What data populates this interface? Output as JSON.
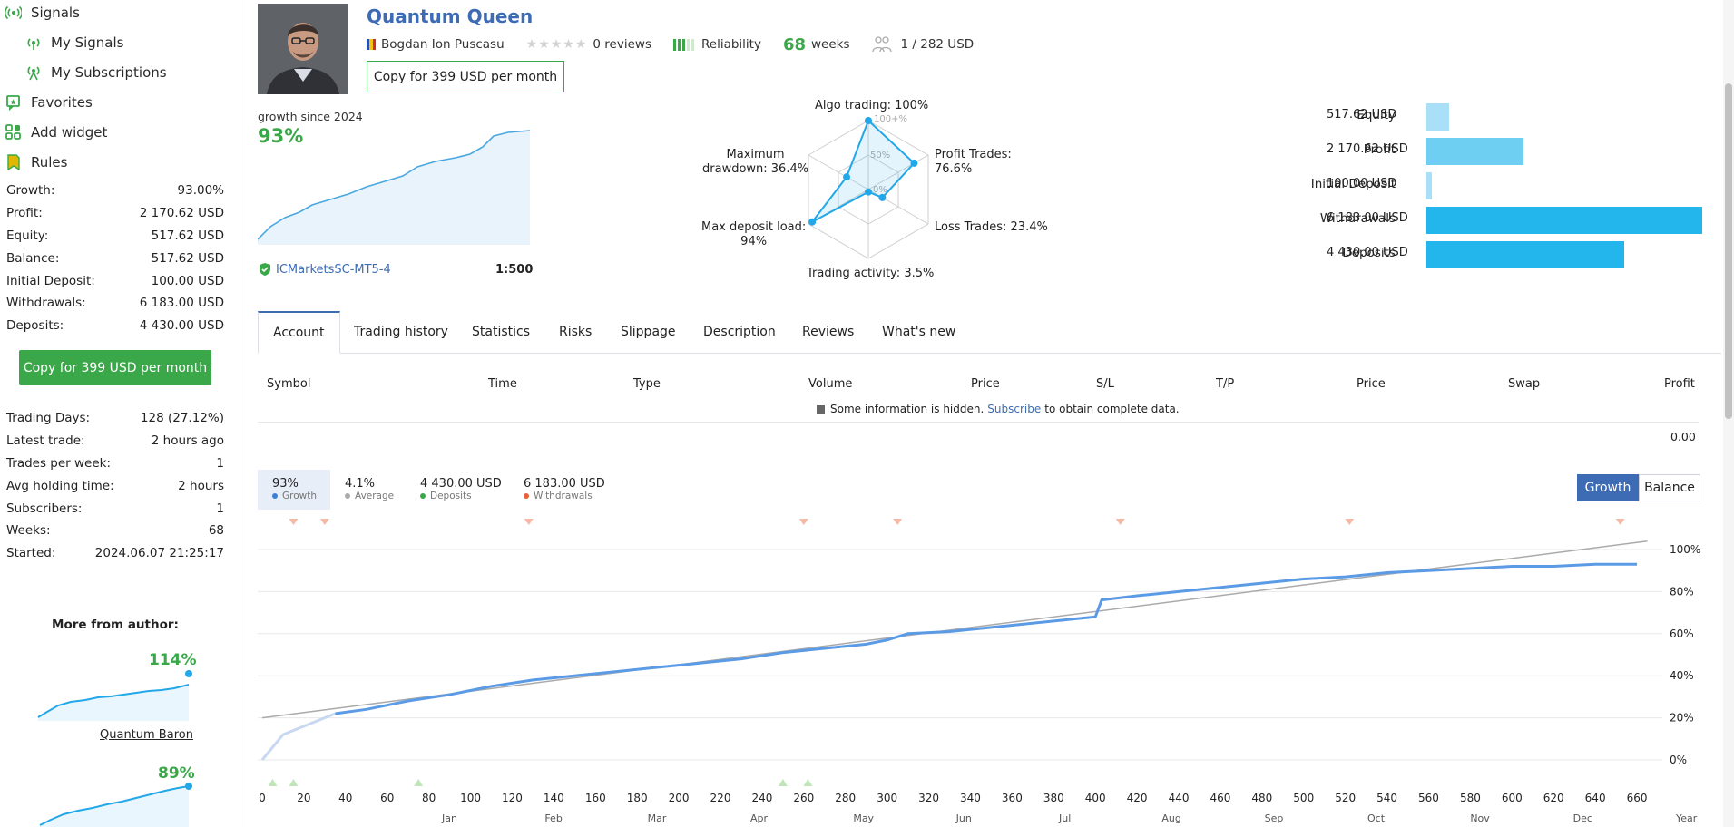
{
  "sidebar": {
    "nav": [
      {
        "label": "Signals",
        "icon": "signal-icon"
      },
      {
        "label": "My Signals",
        "icon": "signal-icon"
      },
      {
        "label": "My Subscriptions",
        "icon": "subscription-icon"
      },
      {
        "label": "Favorites",
        "icon": "favorite-icon"
      },
      {
        "label": "Add widget",
        "icon": "widget-icon"
      },
      {
        "label": "Rules",
        "icon": "rules-icon"
      }
    ],
    "stats1": [
      {
        "label": "Growth:",
        "value": "93.00%"
      },
      {
        "label": "Profit:",
        "value": "2 170.62 USD"
      },
      {
        "label": "Equity:",
        "value": "517.62 USD"
      },
      {
        "label": "Balance:",
        "value": "517.62 USD"
      },
      {
        "label": "Initial Deposit:",
        "value": "100.00 USD"
      },
      {
        "label": "Withdrawals:",
        "value": "6 183.00 USD"
      },
      {
        "label": "Deposits:",
        "value": "4 430.00 USD"
      }
    ],
    "copy_label": "Copy for 399 USD per month",
    "stats2": [
      {
        "label": "Trading Days:",
        "value": "128 (27.12%)"
      },
      {
        "label": "Latest trade:",
        "value": "2 hours ago"
      },
      {
        "label": "Trades per week:",
        "value": "1"
      },
      {
        "label": "Avg holding time:",
        "value": "2 hours"
      },
      {
        "label": "Subscribers:",
        "value": "1"
      },
      {
        "label": "Weeks:",
        "value": "68"
      },
      {
        "label": "Started:",
        "value": "2024.06.07 21:25:17"
      }
    ],
    "more_title": "More from author:",
    "mini1": {
      "value": "114%",
      "name": "Quantum Baron"
    },
    "mini2": {
      "value": "89%"
    }
  },
  "header": {
    "title": "Quantum Queen",
    "author": "Bogdan Ion Puscasu",
    "reviews": "0 reviews",
    "reliability": "Reliability",
    "weeks_num": "68",
    "weeks_word": "weeks",
    "subscribers": "1 / 282 USD",
    "copy_label": "Copy for 399 USD per month",
    "growth_since": "growth since 2024",
    "growth_value": "93%",
    "broker": "ICMarketsSC-MT5-4",
    "leverage": "1:500"
  },
  "radar": {
    "labels": {
      "algo": "Algo trading: 100%",
      "profit_a": "Profit Trades:",
      "profit_b": "76.6%",
      "loss": "Loss Trades: 23.4%",
      "activity": "Trading activity: 3.5%",
      "load_a": "Max deposit load:",
      "load_b": "94%",
      "dd_a": "Maximum",
      "dd_b": "drawdown: 36.4%"
    },
    "ticks": [
      "100+%",
      "50%",
      "0%"
    ],
    "values": [
      100,
      76.6,
      23.4,
      3.5,
      94,
      36.4
    ]
  },
  "balance_bars": [
    {
      "label": "Equity",
      "value": "517.62 USD",
      "amount": 517.62,
      "color": "#a9dff7"
    },
    {
      "label": "Profit",
      "value": "2 170.62 USD",
      "amount": 2170.62,
      "color": "#6fcff3"
    },
    {
      "label": "Initial Deposit",
      "value": "100.00 USD",
      "amount": 100,
      "color": "#a9dff7"
    },
    {
      "label": "Withdrawals",
      "value": "6 183.00 USD",
      "amount": 6183,
      "color": "#22b6ec"
    },
    {
      "label": "Deposits",
      "value": "4 430.00 USD",
      "amount": 4430,
      "color": "#22b6ec"
    }
  ],
  "tabs": [
    "Account",
    "Trading history",
    "Statistics",
    "Risks",
    "Slippage",
    "Description",
    "Reviews",
    "What's new"
  ],
  "table": {
    "headers": [
      "Symbol",
      "Time",
      "Type",
      "Volume",
      "Price",
      "S/L",
      "T/P",
      "Price",
      "Swap",
      "Profit"
    ],
    "hidden_a": "Some information is hidden.",
    "hidden_link": "Subscribe",
    "hidden_b": "to obtain complete data.",
    "total_profit": "0.00"
  },
  "legend": [
    {
      "value": "93%",
      "label": "Growth",
      "color": "#3d7fd6"
    },
    {
      "value": "4.1%",
      "label": "Average",
      "color": "#aaaaaa"
    },
    {
      "value": "4 430.00 USD",
      "label": "Deposits",
      "color": "#3aa849"
    },
    {
      "value": "6 183.00 USD",
      "label": "Withdrawals",
      "color": "#e8603c"
    }
  ],
  "toggle": {
    "growth": "Growth",
    "balance": "Balance"
  },
  "colors": {
    "brand_blue": "#3d6cb4",
    "green": "#3aa849",
    "growth_line": "#5b9be6"
  },
  "chart_data": {
    "type": "line",
    "x_ticks": [
      "0",
      "20",
      "40",
      "60",
      "80",
      "100",
      "120",
      "140",
      "160",
      "180",
      "200",
      "220",
      "240",
      "260",
      "280",
      "300",
      "320",
      "340",
      "360",
      "380",
      "400",
      "420",
      "440",
      "460",
      "480",
      "500",
      "520",
      "540",
      "560",
      "580",
      "600",
      "620",
      "640",
      "660"
    ],
    "y_ticks": [
      "100%",
      "80%",
      "60%",
      "40%",
      "20%",
      "0%"
    ],
    "months": [
      "Jan",
      "Feb",
      "Mar",
      "Apr",
      "May",
      "Jun",
      "Jul",
      "Aug",
      "Sep",
      "Oct",
      "Nov",
      "Dec",
      "Year"
    ],
    "xlim": [
      0,
      670
    ],
    "ylim": [
      0,
      100
    ],
    "series": [
      {
        "name": "Growth",
        "x": [
          0,
          10,
          20,
          35,
          50,
          70,
          90,
          110,
          130,
          150,
          170,
          190,
          210,
          230,
          250,
          270,
          290,
          300,
          310,
          330,
          350,
          380,
          400,
          403,
          420,
          440,
          460,
          480,
          500,
          520,
          540,
          560,
          580,
          600,
          620,
          640,
          660
        ],
        "y": [
          0,
          12,
          16,
          22,
          24,
          28,
          31,
          35,
          38,
          40,
          42,
          44,
          46,
          48,
          51,
          53,
          55,
          57,
          60,
          61,
          63,
          66,
          68,
          76,
          78,
          80,
          82,
          84,
          86,
          87,
          89,
          90,
          91,
          92,
          92,
          93,
          93
        ]
      },
      {
        "name": "Average",
        "x": [
          0,
          665
        ],
        "y": [
          20,
          104
        ]
      }
    ],
    "withdrawal_markers_x": [
      15,
      30,
      128,
      260,
      305,
      412,
      522,
      652
    ],
    "deposit_markers_x": [
      5,
      15,
      75,
      250,
      262
    ]
  }
}
